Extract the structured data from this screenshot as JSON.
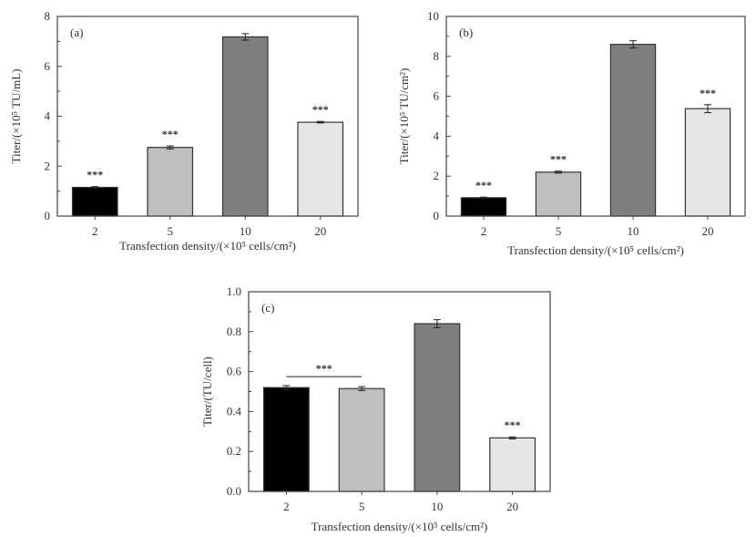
{
  "chart_data": [
    {
      "type": "bar",
      "panel_label": "(a)",
      "categories": [
        "2",
        "5",
        "10",
        "20"
      ],
      "values": [
        1.15,
        2.75,
        7.18,
        3.76
      ],
      "errors": [
        0.03,
        0.06,
        0.13,
        0.03
      ],
      "significance": [
        "***",
        "***",
        "",
        "***"
      ],
      "colors": [
        "#000000",
        "#bfbfbf",
        "#7f7f7f",
        "#e6e6e6"
      ],
      "ylabel": "Titer/(×10⁵ TU/mL)",
      "xlabel": "Transfection density/(×10⁵ cells/cm²)",
      "ylim": [
        0,
        8
      ],
      "yticks": [
        "0",
        "2",
        "4",
        "6",
        "8"
      ]
    },
    {
      "type": "bar",
      "panel_label": "(b)",
      "categories": [
        "2",
        "5",
        "10",
        "20"
      ],
      "values": [
        0.92,
        2.2,
        8.6,
        5.38
      ],
      "errors": [
        0.03,
        0.05,
        0.18,
        0.2
      ],
      "significance": [
        "***",
        "***",
        "",
        "***"
      ],
      "colors": [
        "#000000",
        "#bfbfbf",
        "#7f7f7f",
        "#e6e6e6"
      ],
      "ylabel": "Titer/(×10⁵ TU/cm²)",
      "xlabel": "Transfection density/(×10⁵ cells/cm²)",
      "ylim": [
        0,
        10
      ],
      "yticks": [
        "0",
        "2",
        "4",
        "6",
        "8",
        "10"
      ]
    },
    {
      "type": "bar",
      "panel_label": "(c)",
      "categories": [
        "2",
        "5",
        "10",
        "20"
      ],
      "values": [
        0.52,
        0.515,
        0.84,
        0.268
      ],
      "errors": [
        0.01,
        0.01,
        0.02,
        0.005
      ],
      "significance": [
        "",
        "",
        "",
        "***"
      ],
      "bracket": {
        "from": 0,
        "to": 1,
        "label": "***",
        "y": 0.575
      },
      "colors": [
        "#000000",
        "#bfbfbf",
        "#7f7f7f",
        "#e6e6e6"
      ],
      "ylabel": "Titer/(TU/cell)",
      "xlabel": "Transfection density/(×10⁵ cells/cm²)",
      "ylim": [
        0,
        1.0
      ],
      "yticks": [
        "0.0",
        "0.2",
        "0.4",
        "0.6",
        "0.8",
        "1.0"
      ]
    }
  ]
}
